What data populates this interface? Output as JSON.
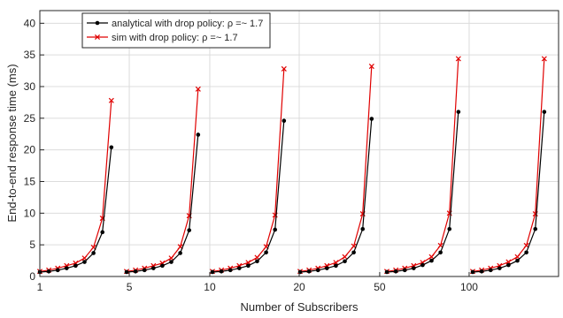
{
  "chart_data": {
    "type": "line",
    "title": "",
    "xlabel": "Number of Subscribers",
    "ylabel": "End-to-end response time (ms)",
    "ylim": [
      0,
      42
    ],
    "xlim": [
      1,
      59
    ],
    "grid": true,
    "legend_position": "top-left",
    "x_ticks": [
      {
        "label": "1",
        "x": 1
      },
      {
        "label": "5",
        "x": 11
      },
      {
        "label": "10",
        "x": 20
      },
      {
        "label": "20",
        "x": 30
      },
      {
        "label": "50",
        "x": 39
      },
      {
        "label": "100",
        "x": 49
      }
    ],
    "y_ticks": [
      0,
      5,
      10,
      15,
      20,
      25,
      30,
      35,
      40
    ],
    "series": [
      {
        "name": "analytical with drop policy: ρ =~ 1.7",
        "color": "#000000",
        "marker": "dot",
        "groups": [
          {
            "x": [
              1,
              2,
              3,
              4,
              5,
              6,
              7,
              8,
              9
            ],
            "y": [
              0.7,
              0.8,
              1.0,
              1.3,
              1.7,
              2.3,
              3.7,
              7.0,
              20.4
            ]
          },
          {
            "x": [
              10.7,
              11.7,
              12.7,
              13.7,
              14.7,
              15.7,
              16.7,
              17.7,
              18.7
            ],
            "y": [
              0.7,
              0.8,
              1.0,
              1.3,
              1.7,
              2.3,
              3.7,
              7.3,
              22.4
            ]
          },
          {
            "x": [
              20.3,
              21.3,
              22.3,
              23.3,
              24.3,
              25.3,
              26.3,
              27.3,
              28.3
            ],
            "y": [
              0.7,
              0.8,
              1.0,
              1.3,
              1.7,
              2.4,
              3.8,
              7.4,
              24.6
            ]
          },
          {
            "x": [
              30.1,
              31.1,
              32.1,
              33.1,
              34.1,
              35.1,
              36.1,
              37.1,
              38.1
            ],
            "y": [
              0.7,
              0.8,
              1.0,
              1.3,
              1.7,
              2.4,
              3.8,
              7.5,
              24.9
            ]
          },
          {
            "x": [
              39.8,
              40.8,
              41.8,
              42.8,
              43.8,
              44.8,
              45.8,
              46.8,
              47.8
            ],
            "y": [
              0.7,
              0.8,
              1.0,
              1.3,
              1.8,
              2.5,
              3.8,
              7.5,
              26.0
            ]
          },
          {
            "x": [
              49.4,
              50.4,
              51.4,
              52.4,
              53.4,
              54.4,
              55.4,
              56.4,
              57.4
            ],
            "y": [
              0.7,
              0.8,
              1.0,
              1.3,
              1.8,
              2.5,
              3.8,
              7.5,
              26.0
            ]
          }
        ]
      },
      {
        "name": "sim with drop policy: ρ =~ 1.7",
        "color": "#e00000",
        "marker": "x",
        "groups": [
          {
            "x": [
              1,
              2,
              3,
              4,
              5,
              6,
              7,
              8,
              9
            ],
            "y": [
              0.8,
              1.0,
              1.3,
              1.7,
              2.1,
              2.9,
              4.6,
              9.2,
              27.8
            ]
          },
          {
            "x": [
              10.7,
              11.7,
              12.7,
              13.7,
              14.7,
              15.7,
              16.7,
              17.7,
              18.7
            ],
            "y": [
              0.8,
              1.0,
              1.3,
              1.7,
              2.1,
              2.9,
              4.7,
              9.6,
              29.6
            ]
          },
          {
            "x": [
              20.3,
              21.3,
              22.3,
              23.3,
              24.3,
              25.3,
              26.3,
              27.3,
              28.3
            ],
            "y": [
              0.8,
              1.0,
              1.3,
              1.7,
              2.2,
              3.0,
              4.7,
              9.7,
              32.8
            ]
          },
          {
            "x": [
              30.1,
              31.1,
              32.1,
              33.1,
              34.1,
              35.1,
              36.1,
              37.1,
              38.1
            ],
            "y": [
              0.8,
              1.0,
              1.3,
              1.7,
              2.2,
              3.1,
              4.8,
              9.9,
              33.2
            ]
          },
          {
            "x": [
              39.8,
              40.8,
              41.8,
              42.8,
              43.8,
              44.8,
              45.8,
              46.8,
              47.8
            ],
            "y": [
              0.8,
              1.0,
              1.3,
              1.7,
              2.2,
              3.1,
              4.9,
              10.0,
              34.4
            ]
          },
          {
            "x": [
              49.4,
              50.4,
              51.4,
              52.4,
              53.4,
              54.4,
              55.4,
              56.4,
              57.4
            ],
            "y": [
              0.8,
              1.0,
              1.3,
              1.7,
              2.3,
              3.1,
              4.9,
              9.9,
              34.4
            ]
          }
        ]
      }
    ]
  }
}
